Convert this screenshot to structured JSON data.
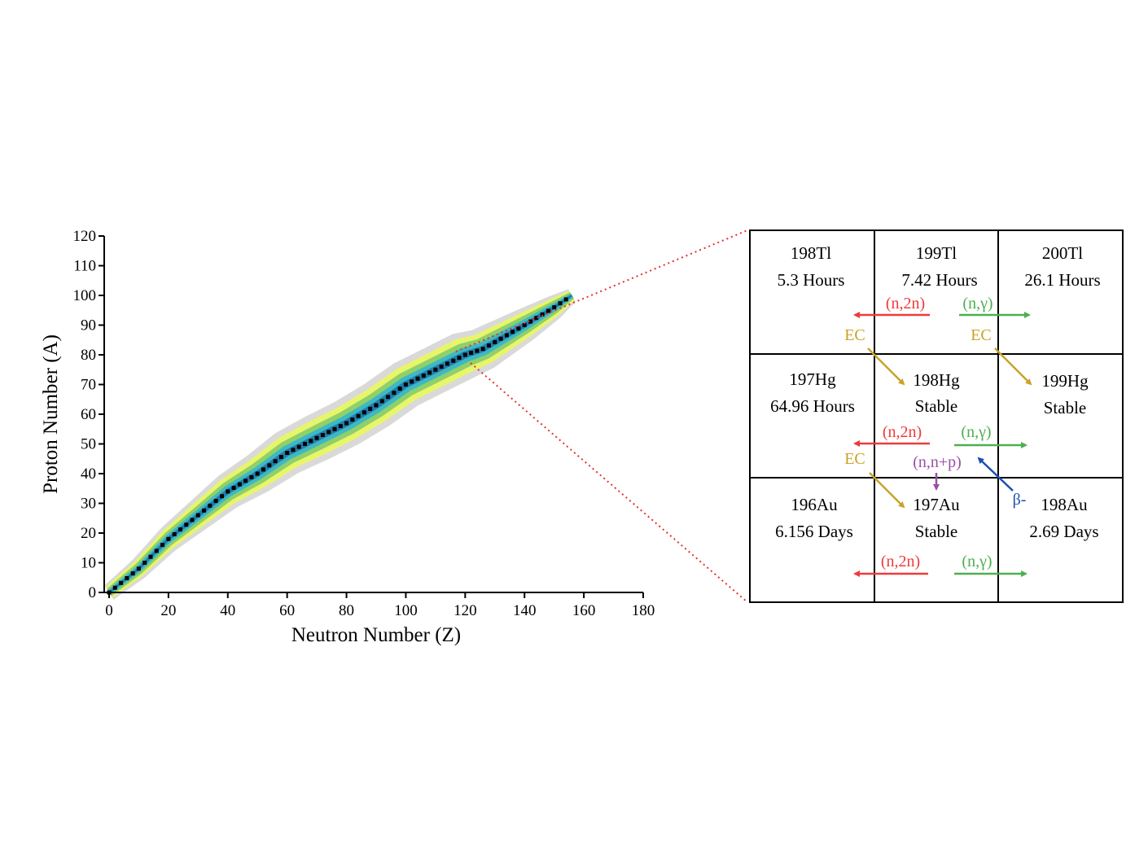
{
  "chart_data": {
    "type": "scatter",
    "title": "",
    "xlabel": "Neutron Number (Z)",
    "ylabel": "Proton Number (A)",
    "xlim": [
      0,
      180
    ],
    "ylim": [
      0,
      120
    ],
    "x_ticks": [
      "0",
      "20",
      "40",
      "60",
      "80",
      "100",
      "120",
      "140",
      "160",
      "180"
    ],
    "y_ticks": [
      "0",
      "10",
      "20",
      "30",
      "40",
      "50",
      "60",
      "70",
      "80",
      "90",
      "100",
      "110",
      "120"
    ],
    "stability_line": [
      [
        0,
        0
      ],
      [
        10,
        8
      ],
      [
        20,
        18
      ],
      [
        30,
        26
      ],
      [
        40,
        34
      ],
      [
        50,
        40
      ],
      [
        60,
        47
      ],
      [
        70,
        52
      ],
      [
        80,
        57
      ],
      [
        90,
        63
      ],
      [
        100,
        70
      ],
      [
        110,
        75
      ],
      [
        120,
        80
      ],
      [
        126,
        82
      ],
      [
        140,
        90
      ],
      [
        150,
        96
      ],
      [
        156,
        100
      ]
    ],
    "bands": [
      {
        "name": "outer",
        "color": "#d9d9d9",
        "halfwidth": 7
      },
      {
        "name": "yellow",
        "color": "#e8f56a",
        "halfwidth": 5.2
      },
      {
        "name": "green",
        "color": "#8fd06a",
        "halfwidth": 3.6
      },
      {
        "name": "teal",
        "color": "#3fb8c2",
        "halfwidth": 2.2
      },
      {
        "name": "blue",
        "color": "#1f7fae",
        "halfwidth": 1.0
      }
    ]
  },
  "grid": {
    "rows": [
      [
        {
          "name": "198Tl",
          "info": "5.3 Hours"
        },
        {
          "name": "199Tl",
          "info": "7.42 Hours"
        },
        {
          "name": "200Tl",
          "info": "26.1 Hours"
        }
      ],
      [
        {
          "name": "197Hg",
          "info": "64.96 Hours"
        },
        {
          "name": "198Hg",
          "info": "Stable"
        },
        {
          "name": "199Hg",
          "info": "Stable"
        }
      ],
      [
        {
          "name": "196Au",
          "info": "6.156 Days"
        },
        {
          "name": "197Au",
          "info": "Stable"
        },
        {
          "name": "198Au",
          "info": "2.69 Days"
        }
      ]
    ]
  },
  "reactions": {
    "n2n": "(n,2n)",
    "ngamma": "(n,γ)",
    "ec": "EC",
    "nnp": "(n,n+p)",
    "beta": "β-"
  },
  "colors": {
    "n2n": "#f03a3a",
    "ngamma": "#4caf50",
    "ec": "#c9a227",
    "nnp": "#9b4fa8",
    "beta": "#1a4fb0",
    "zoom": "#e53030"
  }
}
